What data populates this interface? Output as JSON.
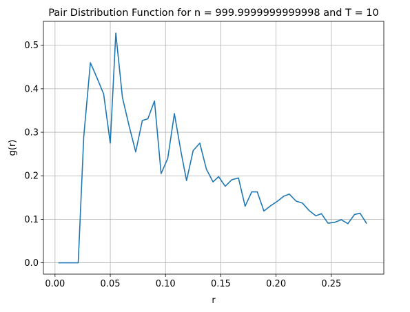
{
  "chart_data": {
    "type": "line",
    "title": "Pair Distribution Function for n = 999.9999999999998 and T = 10",
    "xlabel": "r",
    "ylabel": "g(r)",
    "xlim": [
      -0.0105,
      0.2975
    ],
    "ylim": [
      -0.026,
      0.555
    ],
    "xticks": [
      0.0,
      0.05,
      0.1,
      0.15,
      0.2,
      0.25
    ],
    "xtick_labels": [
      "0.00",
      "0.05",
      "0.10",
      "0.15",
      "0.20",
      "0.25"
    ],
    "yticks": [
      0.0,
      0.1,
      0.2,
      0.3,
      0.4,
      0.5
    ],
    "ytick_labels": [
      "0.0",
      "0.1",
      "0.2",
      "0.3",
      "0.4",
      "0.5"
    ],
    "grid": true,
    "line_color": "#1f77b4",
    "series": [
      {
        "x": [
          0.003,
          0.009,
          0.015,
          0.021,
          0.026,
          0.032,
          0.038,
          0.044,
          0.05,
          0.055,
          0.061,
          0.067,
          0.073,
          0.079,
          0.084,
          0.09,
          0.096,
          0.102,
          0.108,
          0.114,
          0.119,
          0.125,
          0.131,
          0.137,
          0.143,
          0.148,
          0.154,
          0.16,
          0.166,
          0.172,
          0.178,
          0.183,
          0.189,
          0.195,
          0.201,
          0.207,
          0.212,
          0.218,
          0.224,
          0.23,
          0.236,
          0.241,
          0.247,
          0.253,
          0.259,
          0.265,
          0.271,
          0.276,
          0.282
        ],
        "y": [
          0.0,
          0.0,
          0.0,
          0.0,
          0.29,
          0.46,
          0.425,
          0.388,
          0.275,
          0.528,
          0.38,
          0.315,
          0.255,
          0.327,
          0.331,
          0.372,
          0.205,
          0.24,
          0.343,
          0.255,
          0.189,
          0.258,
          0.275,
          0.215,
          0.186,
          0.198,
          0.176,
          0.191,
          0.195,
          0.13,
          0.163,
          0.163,
          0.119,
          0.131,
          0.141,
          0.153,
          0.158,
          0.142,
          0.137,
          0.12,
          0.108,
          0.113,
          0.091,
          0.093,
          0.099,
          0.09,
          0.111,
          0.114,
          0.09
        ]
      }
    ]
  }
}
